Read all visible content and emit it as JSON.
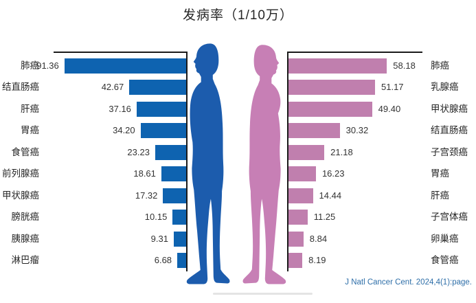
{
  "title": "发病率（1/10万）",
  "citation": "J Natl Cancer Cent. 2024,4(1):page.",
  "colors": {
    "male_bar": "#0e63b0",
    "female_bar": "#c07fae",
    "male_figure": "#1c5cad",
    "female_figure": "#c77fb5",
    "axis": "#1a1a1a",
    "citation_text": "#2d6ea8"
  },
  "chart_data": [
    {
      "type": "bar",
      "series_name": "male_incidence",
      "orientation": "horizontal, bars extend left from axis",
      "title": "发病率（1/10万）",
      "categories": [
        "肺癌",
        "结直肠癌",
        "肝癌",
        "胃癌",
        "食管癌",
        "前列腺癌",
        "甲状腺癌",
        "膀胱癌",
        "胰腺癌",
        "淋巴瘤"
      ],
      "values": [
        91.36,
        42.67,
        37.16,
        34.2,
        23.23,
        18.61,
        17.32,
        10.15,
        9.31,
        6.68
      ],
      "value_labels": [
        "91.36",
        "42.67",
        "37.16",
        "34.20",
        "23.23",
        "18.61",
        "17.32",
        "10.15",
        "9.31",
        "6.68"
      ],
      "xlim": [
        0,
        100
      ],
      "bar_color": "#0e63b0",
      "grid": false,
      "legend": "none (male figure pictogram)"
    },
    {
      "type": "bar",
      "series_name": "female_incidence",
      "orientation": "horizontal, bars extend right from axis",
      "title": "发病率（1/10万）",
      "categories": [
        "肺癌",
        "乳腺癌",
        "甲状腺癌",
        "结直肠癌",
        "子宫颈癌",
        "胃癌",
        "肝癌",
        "子宫体癌",
        "卵巢癌",
        "食管癌"
      ],
      "values": [
        58.18,
        51.17,
        49.4,
        30.32,
        21.18,
        16.23,
        14.44,
        11.25,
        8.84,
        8.19
      ],
      "value_labels": [
        "58.18",
        "51.17",
        "49.40",
        "30.32",
        "21.18",
        "16.23",
        "14.44",
        "11.25",
        "8.84",
        "8.19"
      ],
      "xlim": [
        0,
        80
      ],
      "bar_color": "#c07fae",
      "grid": false,
      "legend": "none (female figure pictogram)"
    }
  ]
}
